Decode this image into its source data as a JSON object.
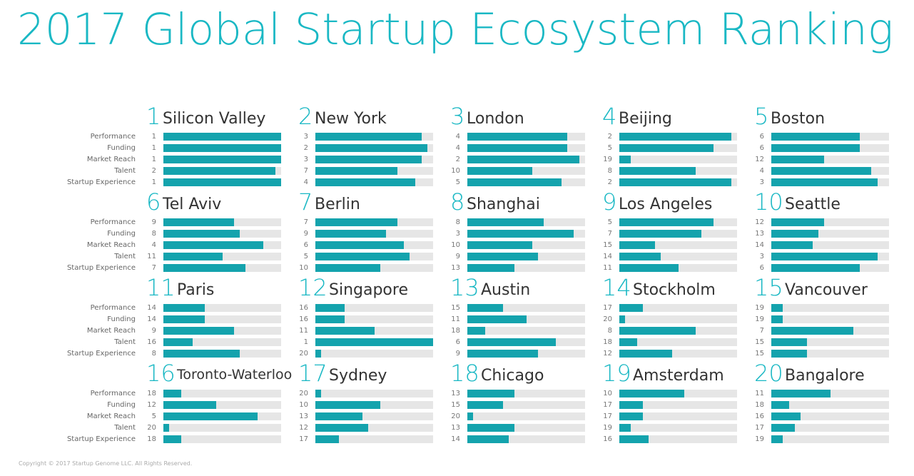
{
  "title": "2017 Global Startup Ecosystem Ranking",
  "copyright": "Copyright © 2017 Startup Genome LLC. All Rights Reserved.",
  "colors": {
    "accent": "#1ab8c4",
    "bar": "#14a3ad",
    "track": "#e6e6e6"
  },
  "chart_data": {
    "type": "bar",
    "metrics": [
      "Performance",
      "Funding",
      "Market Reach",
      "Talent",
      "Startup Experience"
    ],
    "rank_scale": {
      "best": 1,
      "worst": 20
    },
    "ecosystems": [
      {
        "rank": "1",
        "name": "Silicon Valley",
        "ranks": [
          "1",
          "1",
          "1",
          "2",
          "1"
        ]
      },
      {
        "rank": "2",
        "name": "New York",
        "ranks": [
          "3",
          "2",
          "3",
          "7",
          "4"
        ]
      },
      {
        "rank": "3",
        "name": "London",
        "ranks": [
          "4",
          "4",
          "2",
          "10",
          "5"
        ]
      },
      {
        "rank": "4",
        "name": "Beijing",
        "ranks": [
          "2",
          "5",
          "19",
          "8",
          "2"
        ]
      },
      {
        "rank": "5",
        "name": "Boston",
        "ranks": [
          "6",
          "6",
          "12",
          "4",
          "3"
        ]
      },
      {
        "rank": "6",
        "name": "Tel Aviv",
        "ranks": [
          "9",
          "8",
          "4",
          "11",
          "7"
        ]
      },
      {
        "rank": "7",
        "name": "Berlin",
        "ranks": [
          "7",
          "9",
          "6",
          "5",
          "10"
        ]
      },
      {
        "rank": "8",
        "name": "Shanghai",
        "ranks": [
          "8",
          "3",
          "10",
          "9",
          "13"
        ]
      },
      {
        "rank": "9",
        "name": "Los Angeles",
        "ranks": [
          "5",
          "7",
          "15",
          "14",
          "11"
        ]
      },
      {
        "rank": "10",
        "name": "Seattle",
        "ranks": [
          "12",
          "13",
          "14",
          "3",
          "6"
        ]
      },
      {
        "rank": "11",
        "name": "Paris",
        "ranks": [
          "14",
          "14",
          "9",
          "16",
          "8"
        ]
      },
      {
        "rank": "12",
        "name": "Singapore",
        "ranks": [
          "16",
          "16",
          "11",
          "1",
          "20"
        ]
      },
      {
        "rank": "13",
        "name": "Austin",
        "ranks": [
          "15",
          "11",
          "18",
          "6",
          "9"
        ]
      },
      {
        "rank": "14",
        "name": "Stockholm",
        "ranks": [
          "17",
          "20",
          "8",
          "18",
          "12"
        ]
      },
      {
        "rank": "15",
        "name": "Vancouver",
        "ranks": [
          "19",
          "19",
          "7",
          "15",
          "15"
        ]
      },
      {
        "rank": "16",
        "name": "Toronto-Waterloo",
        "ranks": [
          "18",
          "12",
          "5",
          "20",
          "18"
        ]
      },
      {
        "rank": "17",
        "name": "Sydney",
        "ranks": [
          "20",
          "10",
          "13",
          "12",
          "17"
        ]
      },
      {
        "rank": "18",
        "name": "Chicago",
        "ranks": [
          "13",
          "15",
          "20",
          "13",
          "14"
        ]
      },
      {
        "rank": "19",
        "name": "Amsterdam",
        "ranks": [
          "10",
          "17",
          "17",
          "19",
          "16"
        ]
      },
      {
        "rank": "20",
        "name": "Bangalore",
        "ranks": [
          "11",
          "18",
          "16",
          "17",
          "19"
        ]
      }
    ]
  }
}
